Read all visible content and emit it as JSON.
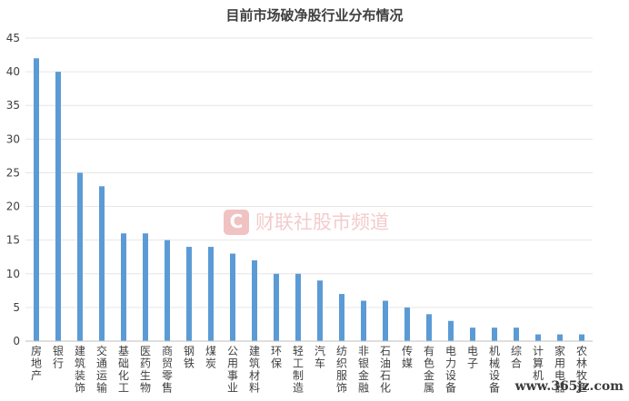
{
  "watermark": {
    "logo_letter": "C",
    "text": "财联社股市频道"
  },
  "site_mark": "www.365jz.com",
  "chart_data": {
    "type": "bar",
    "title": "目前市场破净股行业分布情况",
    "xlabel": "",
    "ylabel": "",
    "ylim": [
      0,
      45
    ],
    "yticks": [
      0,
      5,
      10,
      15,
      20,
      25,
      30,
      35,
      40,
      45
    ],
    "grid": true,
    "bar_color": "#5b9bd5",
    "categories": [
      "房地产",
      "银行",
      "建筑装饰",
      "交通运输",
      "基础化工",
      "医药生物",
      "商贸零售",
      "钢铁",
      "煤炭",
      "公用事业",
      "建筑材料",
      "环保",
      "轻工制造",
      "汽车",
      "纺织服饰",
      "非银金融",
      "石油石化",
      "传媒",
      "有色金属",
      "电力设备",
      "电子",
      "机械设备",
      "综合",
      "计算机",
      "家用电器",
      "农林牧渔"
    ],
    "values": [
      42,
      40,
      25,
      23,
      16,
      16,
      15,
      14,
      14,
      13,
      12,
      10,
      10,
      9,
      7,
      6,
      6,
      5,
      4,
      3,
      2,
      2,
      2,
      1,
      1,
      1
    ]
  }
}
